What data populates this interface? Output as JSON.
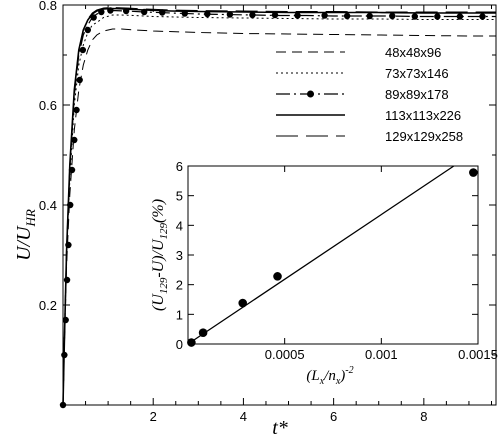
{
  "chart_data": [
    {
      "type": "line",
      "title": "",
      "xlabel": "t*",
      "ylabel_main": "U/U",
      "ylabel_sub": "HR",
      "xlim": [
        0,
        9.6
      ],
      "ylim": [
        0,
        0.8
      ],
      "xticks": [
        2,
        4,
        6,
        8
      ],
      "xtick_labels": [
        "2",
        "4",
        "6",
        "8"
      ],
      "yticks": [
        0.2,
        0.4,
        0.6,
        0.8
      ],
      "ytick_labels": [
        "0.2",
        "0.4",
        "0.6",
        "0.8"
      ],
      "grid": false,
      "legend_position": "top-right",
      "series": [
        {
          "name": "48x48x96",
          "style": "dash",
          "x": [
            0,
            0.03,
            0.08,
            0.15,
            0.25,
            0.35,
            0.45,
            0.55,
            0.65,
            0.75,
            0.9,
            1.1,
            1.3,
            1.6,
            2.0,
            3.0,
            4.0,
            5.0,
            6.0,
            7.0,
            8.0,
            9.0,
            9.6
          ],
          "y": [
            0,
            0.12,
            0.28,
            0.42,
            0.55,
            0.63,
            0.68,
            0.71,
            0.73,
            0.74,
            0.748,
            0.752,
            0.752,
            0.75,
            0.748,
            0.745,
            0.743,
            0.742,
            0.741,
            0.74,
            0.739,
            0.738,
            0.738
          ]
        },
        {
          "name": "73x73x146",
          "style": "dot",
          "x": [
            0,
            0.03,
            0.08,
            0.15,
            0.25,
            0.35,
            0.45,
            0.55,
            0.65,
            0.75,
            0.9,
            1.1,
            1.3,
            1.6,
            2.0,
            3.0,
            4.0,
            5.0,
            6.0,
            7.0,
            8.0,
            9.0,
            9.6
          ],
          "y": [
            0,
            0.13,
            0.3,
            0.45,
            0.6,
            0.68,
            0.72,
            0.745,
            0.76,
            0.765,
            0.775,
            0.78,
            0.78,
            0.779,
            0.777,
            0.775,
            0.774,
            0.773,
            0.772,
            0.772,
            0.771,
            0.771,
            0.771
          ]
        },
        {
          "name": "89x89x178",
          "style": "dashdot-marker",
          "x": [
            0,
            0.03,
            0.08,
            0.15,
            0.25,
            0.35,
            0.45,
            0.55,
            0.65,
            0.75,
            0.9,
            1.1,
            1.4,
            1.8,
            2.4,
            3.0,
            3.6,
            4.2,
            4.8,
            5.4,
            6.0,
            6.6,
            7.2,
            7.8,
            8.4,
            9.0,
            9.6
          ],
          "y": [
            0,
            0.13,
            0.31,
            0.47,
            0.62,
            0.7,
            0.74,
            0.76,
            0.775,
            0.782,
            0.787,
            0.789,
            0.788,
            0.786,
            0.784,
            0.782,
            0.781,
            0.78,
            0.779,
            0.779,
            0.778,
            0.778,
            0.778,
            0.777,
            0.777,
            0.777,
            0.777
          ],
          "marker_x": [
            0,
            0.03,
            0.06,
            0.09,
            0.12,
            0.16,
            0.2,
            0.25,
            0.3,
            0.37,
            0.44,
            0.55,
            0.68,
            0.85,
            1.05,
            1.4,
            1.8,
            2.2,
            2.7,
            3.2,
            3.7,
            4.2,
            4.7,
            5.2,
            5.8,
            6.3,
            6.8,
            7.3,
            7.8,
            8.3,
            8.8,
            9.3
          ],
          "marker_y": [
            0,
            0.1,
            0.17,
            0.25,
            0.32,
            0.4,
            0.47,
            0.53,
            0.59,
            0.65,
            0.71,
            0.75,
            0.775,
            0.786,
            0.789,
            0.788,
            0.786,
            0.785,
            0.783,
            0.782,
            0.781,
            0.78,
            0.78,
            0.779,
            0.779,
            0.778,
            0.778,
            0.778,
            0.777,
            0.777,
            0.777,
            0.777
          ]
        },
        {
          "name": "113x113x226",
          "style": "solid",
          "x": [
            0,
            0.03,
            0.08,
            0.15,
            0.25,
            0.35,
            0.45,
            0.55,
            0.65,
            0.75,
            0.9,
            1.1,
            1.4,
            1.8,
            2.4,
            3.0,
            4.0,
            5.0,
            6.0,
            7.0,
            8.0,
            9.0,
            9.6
          ],
          "y": [
            0,
            0.13,
            0.31,
            0.48,
            0.63,
            0.71,
            0.75,
            0.77,
            0.782,
            0.788,
            0.792,
            0.793,
            0.792,
            0.79,
            0.788,
            0.787,
            0.786,
            0.785,
            0.785,
            0.785,
            0.784,
            0.784,
            0.784
          ]
        },
        {
          "name": "129x129x258",
          "style": "longdash",
          "x": [
            0,
            0.03,
            0.08,
            0.15,
            0.25,
            0.35,
            0.45,
            0.55,
            0.65,
            0.75,
            0.9,
            1.1,
            1.4,
            1.8,
            2.4,
            3.0,
            4.0,
            5.0,
            6.0,
            7.0,
            8.0,
            9.0,
            9.6
          ],
          "y": [
            0,
            0.13,
            0.31,
            0.48,
            0.63,
            0.71,
            0.75,
            0.772,
            0.784,
            0.79,
            0.794,
            0.795,
            0.794,
            0.792,
            0.79,
            0.789,
            0.788,
            0.787,
            0.787,
            0.786,
            0.786,
            0.786,
            0.786
          ]
        }
      ]
    },
    {
      "type": "scatter",
      "title": "",
      "xlabel_main": "(L",
      "xlabel_sub1": "x",
      "xlabel_mid": "/n",
      "xlabel_sub2": "x",
      "xlabel_end": ")",
      "xlabel_sup": "-2",
      "ylabel_main1": "(U",
      "ylabel_sub1": "129",
      "ylabel_mid": "-U)/U",
      "ylabel_sub2": "129",
      "ylabel_end": "(%)",
      "xlim": [
        0,
        0.0015
      ],
      "ylim": [
        0,
        6
      ],
      "xticks": [
        0.0005,
        0.001,
        0.0015
      ],
      "xtick_labels": [
        "0.0005",
        "0.001",
        "0.0015"
      ],
      "yticks": [
        0,
        1,
        2,
        3,
        4,
        5,
        6
      ],
      "ytick_labels": [
        "0",
        "1",
        "2",
        "3",
        "4",
        "5",
        "6"
      ],
      "points": {
        "x": [
          1.75e-05,
          7.81e-05,
          0.000283,
          0.000463,
          0.0014759
        ],
        "y": [
          0.05,
          0.38,
          1.38,
          2.28,
          5.78
        ]
      },
      "fit_line": {
        "x": [
          0,
          0.001375
        ],
        "y": [
          0,
          6
        ]
      }
    }
  ]
}
